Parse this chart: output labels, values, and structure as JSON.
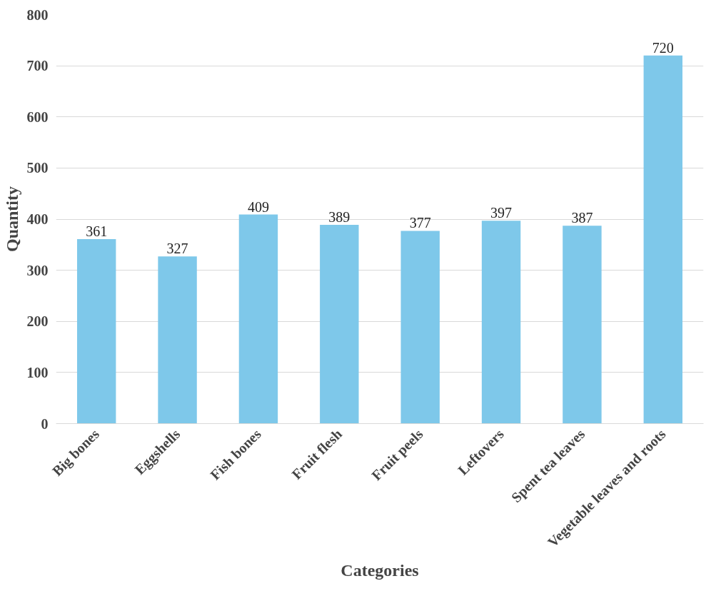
{
  "chart_data": {
    "type": "bar",
    "xlabel": "Categories",
    "ylabel": "Quantity",
    "categories": [
      "Big bones",
      "Eggshells",
      "Fish bones",
      "Fruit flesh",
      "Fruit peels",
      "Leftovers",
      "Spent tea leaves",
      "Vegetable leaves and roots"
    ],
    "values": [
      361,
      327,
      409,
      389,
      377,
      397,
      387,
      720
    ],
    "color": "#7ec8ea",
    "ylim": [
      0,
      800
    ],
    "yticks": [
      0,
      100,
      200,
      300,
      400,
      500,
      600,
      700,
      800
    ],
    "grid": "y",
    "data_labels": true
  }
}
